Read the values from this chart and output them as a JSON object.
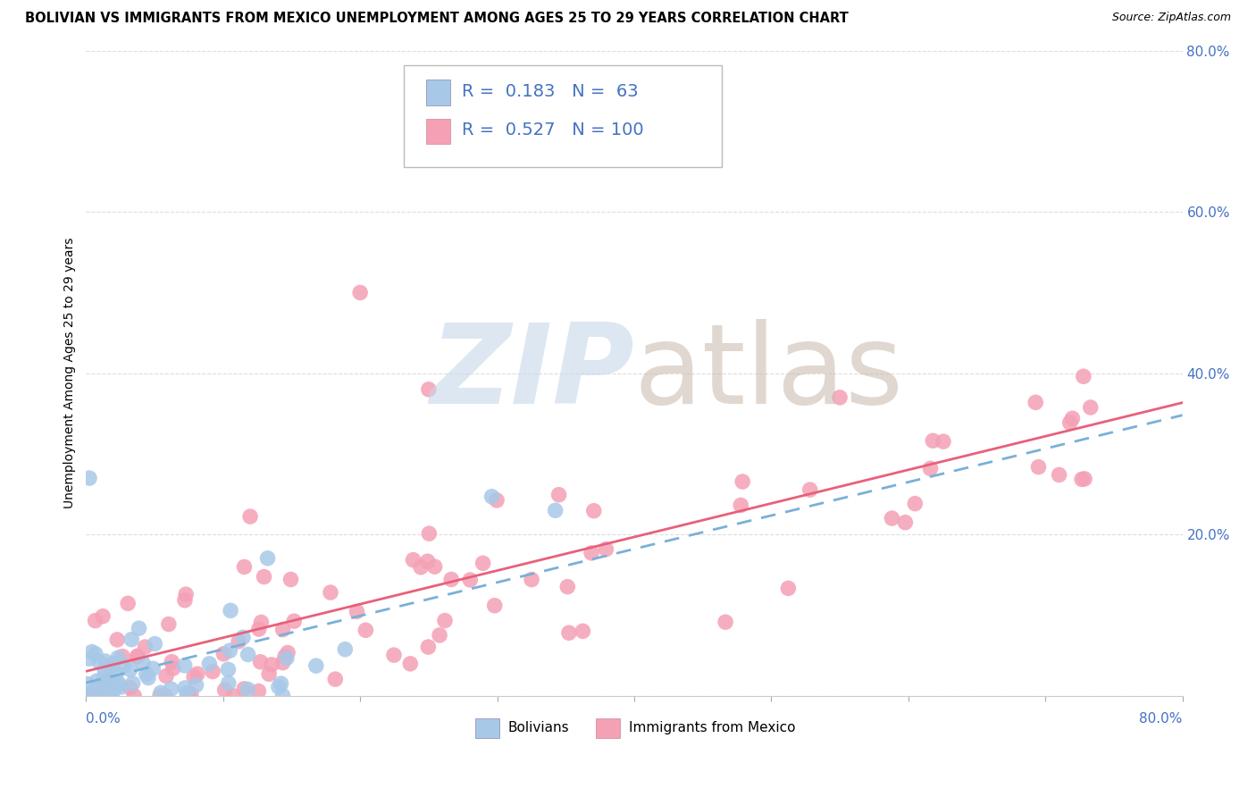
{
  "title": "BOLIVIAN VS IMMIGRANTS FROM MEXICO UNEMPLOYMENT AMONG AGES 25 TO 29 YEARS CORRELATION CHART",
  "source": "Source: ZipAtlas.com",
  "ylabel": "Unemployment Among Ages 25 to 29 years",
  "xlim": [
    0,
    0.8
  ],
  "ylim": [
    0,
    0.8
  ],
  "bolivians_R": 0.183,
  "bolivians_N": 63,
  "bolivia_color": "#a8c8e8",
  "bolivia_line_color": "#7ab0d8",
  "mexico_R": 0.527,
  "mexico_N": 100,
  "mexico_color": "#f4a0b5",
  "mexico_line_color": "#e8607a",
  "watermark_zip_color": "#c5d8ea",
  "watermark_atlas_color": "#c8b8aa",
  "background_color": "#ffffff",
  "grid_color": "#dddddd",
  "tick_color": "#4472c4",
  "title_fontsize": 10.5,
  "source_fontsize": 9,
  "legend_label_1": "Bolivians",
  "legend_label_2": "Immigrants from Mexico"
}
